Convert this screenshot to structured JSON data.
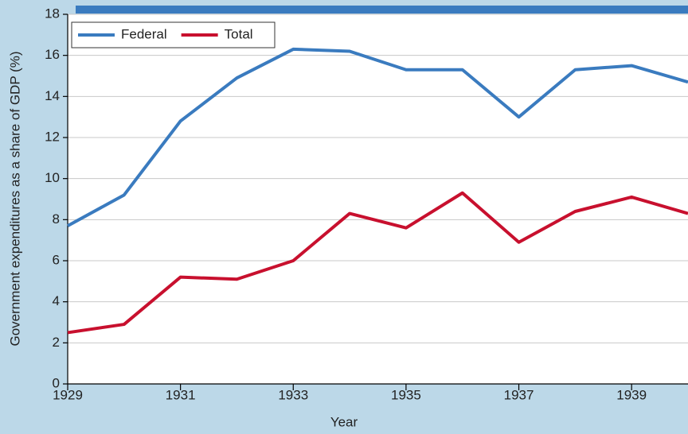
{
  "chart_data": {
    "type": "line",
    "x": [
      1929,
      1930,
      1931,
      1932,
      1933,
      1934,
      1935,
      1936,
      1937,
      1938,
      1939,
      1940
    ],
    "series": [
      {
        "name": "Federal",
        "color": "#3a7bbf",
        "values": [
          7.7,
          9.2,
          12.8,
          14.9,
          16.3,
          16.2,
          15.3,
          15.3,
          13.0,
          15.3,
          15.5,
          14.7
        ]
      },
      {
        "name": "Total",
        "color": "#c8102e",
        "values": [
          2.5,
          2.9,
          5.2,
          5.1,
          6.0,
          8.3,
          7.6,
          9.3,
          6.9,
          8.4,
          9.1,
          8.3
        ]
      }
    ],
    "xlabel": "Year",
    "ylabel": "Government expenditures as a share of GDP (%)",
    "xlim": [
      1929,
      1940
    ],
    "xticks": [
      1929,
      1931,
      1933,
      1935,
      1937,
      1939
    ],
    "ylim": [
      0,
      18
    ],
    "yticks": [
      0,
      2,
      4,
      6,
      8,
      10,
      12,
      14,
      16,
      18
    ],
    "grid": true,
    "legend": "upper left"
  }
}
